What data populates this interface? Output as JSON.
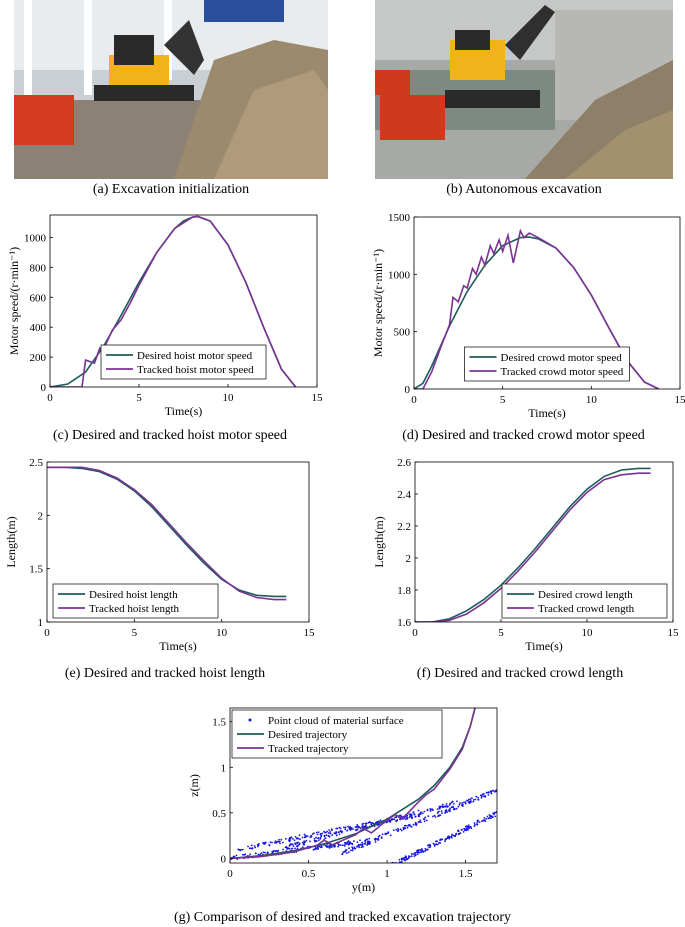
{
  "captions": {
    "a": "(a) Excavation initialization",
    "b": "(b) Autonomous excavation",
    "c": "(c) Desired and tracked hoist motor speed",
    "d": "(d) Desired and tracked crowd motor speed",
    "e": "(e) Desired and tracked hoist length",
    "f": "(f) Desired and tracked crowd length",
    "g": "(g) Comparison of desired and tracked excavation trajectory"
  },
  "colors": {
    "desired": "#1d5c5a",
    "tracked": "#7b3294",
    "points": "#1515e0"
  },
  "chart_data": [
    {
      "id": "c",
      "type": "line",
      "xlabel": "Time(s)",
      "ylabel": "Motor speed/(r·min⁻¹)",
      "xlim": [
        0,
        15
      ],
      "ylim": [
        0,
        1150
      ],
      "xticks": [
        0,
        5,
        10,
        15
      ],
      "yticks": [
        0,
        200,
        400,
        600,
        800,
        1000
      ],
      "legend": "bottom-center",
      "series": [
        {
          "name": "Desired hoist motor speed",
          "role": "desired",
          "x": [
            0,
            1,
            2,
            3,
            4,
            5,
            6,
            7,
            7.5,
            8,
            8.3,
            9,
            10,
            11,
            12,
            13,
            13.8
          ],
          "y": [
            0,
            20,
            100,
            270,
            480,
            700,
            900,
            1060,
            1110,
            1135,
            1140,
            1110,
            950,
            700,
            400,
            120,
            0
          ]
        },
        {
          "name": "Tracked hoist motor speed",
          "role": "tracked",
          "x": [
            0,
            1,
            1.8,
            2,
            2.5,
            2.8,
            3,
            3.5,
            4,
            4.5,
            5,
            6,
            7,
            8,
            8.3,
            9,
            10,
            11,
            12,
            13,
            13.8
          ],
          "y": [
            0,
            0,
            0,
            180,
            160,
            260,
            250,
            380,
            450,
            560,
            680,
            900,
            1060,
            1135,
            1140,
            1110,
            950,
            700,
            400,
            120,
            0
          ]
        }
      ]
    },
    {
      "id": "d",
      "type": "line",
      "xlabel": "Time(s)",
      "ylabel": "Motor speed/(r·min⁻¹)",
      "xlim": [
        0,
        15
      ],
      "ylim": [
        0,
        1500
      ],
      "xticks": [
        0,
        5,
        10,
        15
      ],
      "yticks": [
        0,
        500,
        1000,
        1500
      ],
      "legend": "bottom-center",
      "series": [
        {
          "name": "Desired crowd motor speed",
          "role": "desired",
          "x": [
            0,
            0.5,
            1,
            2,
            3,
            4,
            5,
            6,
            6.5,
            7,
            8,
            9,
            10,
            11,
            12,
            13,
            13.8
          ],
          "y": [
            0,
            50,
            200,
            550,
            850,
            1080,
            1250,
            1320,
            1325,
            1310,
            1230,
            1060,
            820,
            530,
            250,
            60,
            0
          ]
        },
        {
          "name": "Tracked crowd motor speed",
          "role": "tracked",
          "x": [
            0,
            0.5,
            1,
            1.5,
            2,
            2.2,
            2.5,
            2.8,
            3,
            3.3,
            3.5,
            3.8,
            4,
            4.3,
            4.5,
            4.8,
            5,
            5.3,
            5.6,
            6,
            6.2,
            6.5,
            7,
            8,
            9,
            10,
            11,
            12,
            13,
            13.8
          ],
          "y": [
            0,
            0,
            150,
            360,
            560,
            800,
            760,
            900,
            880,
            1050,
            1000,
            1150,
            1080,
            1250,
            1180,
            1300,
            1200,
            1340,
            1100,
            1380,
            1320,
            1360,
            1320,
            1230,
            1060,
            820,
            530,
            250,
            60,
            0
          ]
        }
      ]
    },
    {
      "id": "e",
      "type": "line",
      "xlabel": "Time(s)",
      "ylabel": "Length(m)",
      "xlim": [
        0,
        15
      ],
      "ylim": [
        1,
        2.5
      ],
      "xticks": [
        0,
        5,
        10,
        15
      ],
      "yticks": [
        1,
        1.5,
        2,
        2.5
      ],
      "legend": "bottom-left",
      "series": [
        {
          "name": "Desired hoist length",
          "role": "desired",
          "x": [
            0,
            1,
            2,
            3,
            4,
            5,
            6,
            7,
            8,
            9,
            10,
            11,
            12,
            13,
            13.7
          ],
          "y": [
            2.45,
            2.45,
            2.44,
            2.41,
            2.34,
            2.23,
            2.08,
            1.9,
            1.72,
            1.55,
            1.4,
            1.3,
            1.25,
            1.24,
            1.24
          ]
        },
        {
          "name": "Tracked hoist length",
          "role": "tracked",
          "x": [
            0,
            1,
            2,
            3,
            4,
            5,
            6,
            7,
            8,
            9,
            10,
            11,
            12,
            13,
            13.7
          ],
          "y": [
            2.45,
            2.45,
            2.45,
            2.42,
            2.35,
            2.24,
            2.1,
            1.92,
            1.74,
            1.57,
            1.41,
            1.29,
            1.23,
            1.21,
            1.21
          ]
        }
      ]
    },
    {
      "id": "f",
      "type": "line",
      "xlabel": "Time(s)",
      "ylabel": "Length(m)",
      "xlim": [
        0,
        15
      ],
      "ylim": [
        1.6,
        2.6
      ],
      "xticks": [
        0,
        5,
        10,
        15
      ],
      "yticks": [
        1.6,
        1.8,
        2,
        2.2,
        2.4,
        2.6
      ],
      "legend": "bottom-right",
      "series": [
        {
          "name": "Desired crowd length",
          "role": "desired",
          "x": [
            0,
            1,
            2,
            3,
            4,
            5,
            6,
            7,
            8,
            9,
            10,
            11,
            12,
            13,
            13.7
          ],
          "y": [
            1.6,
            1.6,
            1.62,
            1.67,
            1.74,
            1.83,
            1.94,
            2.06,
            2.19,
            2.32,
            2.43,
            2.51,
            2.55,
            2.56,
            2.56
          ]
        },
        {
          "name": "Tracked crowd length",
          "role": "tracked",
          "x": [
            0,
            1,
            2,
            3,
            4,
            5,
            6,
            7,
            8,
            9,
            10,
            11,
            12,
            13,
            13.7
          ],
          "y": [
            1.6,
            1.6,
            1.61,
            1.65,
            1.72,
            1.81,
            1.92,
            2.04,
            2.17,
            2.3,
            2.41,
            2.49,
            2.52,
            2.53,
            2.53
          ]
        }
      ]
    },
    {
      "id": "g",
      "type": "scatter",
      "xlabel": "y(m)",
      "ylabel": "z(m)",
      "xlim": [
        0,
        1.7
      ],
      "ylim": [
        -0.05,
        1.65
      ],
      "xticks": [
        0,
        0.5,
        1,
        1.5
      ],
      "yticks": [
        0,
        0.5,
        1,
        1.5
      ],
      "legend": "top-left",
      "series": [
        {
          "name": "Point cloud of material surface",
          "role": "points",
          "bands": [
            {
              "x0": 0.0,
              "x1": 0.95,
              "base": 0.0,
              "slope": 0.22
            },
            {
              "x0": 0.05,
              "x1": 1.25,
              "base": 0.1,
              "slope": 0.33
            },
            {
              "x0": 0.35,
              "x1": 1.45,
              "base": 0.12,
              "slope": 0.45
            },
            {
              "x0": 0.7,
              "x1": 1.7,
              "base": 0.05,
              "slope": 0.7
            },
            {
              "x0": 1.0,
              "x1": 1.7,
              "base": -0.1,
              "slope": 0.85
            }
          ]
        },
        {
          "name": "Desired trajectory",
          "role": "desired",
          "x": [
            0.0,
            0.2,
            0.4,
            0.6,
            0.8,
            1.0,
            1.2,
            1.3,
            1.4,
            1.48,
            1.53,
            1.56
          ],
          "y": [
            0.0,
            0.03,
            0.08,
            0.16,
            0.27,
            0.43,
            0.65,
            0.8,
            1.0,
            1.22,
            1.45,
            1.65
          ]
        },
        {
          "name": "Tracked trajectory",
          "role": "tracked",
          "x": [
            0.0,
            0.2,
            0.4,
            0.55,
            0.6,
            0.65,
            0.8,
            0.85,
            0.9,
            1.0,
            1.05,
            1.1,
            1.2,
            1.25,
            1.3,
            1.4,
            1.48,
            1.53,
            1.56
          ],
          "y": [
            0.0,
            0.02,
            0.07,
            0.14,
            0.2,
            0.15,
            0.26,
            0.33,
            0.28,
            0.42,
            0.48,
            0.44,
            0.62,
            0.7,
            0.76,
            0.98,
            1.2,
            1.45,
            1.65
          ]
        }
      ]
    }
  ]
}
